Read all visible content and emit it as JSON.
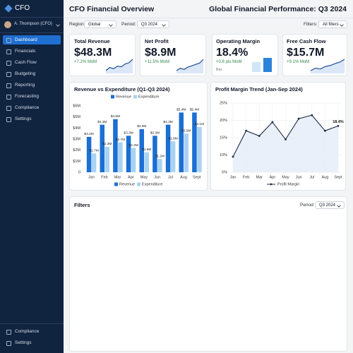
{
  "sidebar": {
    "logo": "CFO",
    "user": "A. Thompson (CFO)",
    "nav": [
      "Dashboard",
      "Financials",
      "Cash Flow",
      "Budgeting",
      "Reporting",
      "Forecasting",
      "Compliance",
      "Settings"
    ],
    "footer": [
      "Compliance",
      "Settings"
    ]
  },
  "header": {
    "title": "CFO Financial Overview",
    "subtitle": "Global Financial Performance: Q3 2024"
  },
  "filters_bar": {
    "region_label": "Region:",
    "region": "Global",
    "period_label": "Period:",
    "period": "Q3 2024",
    "filters_label": "Filters:",
    "filters": "All filters"
  },
  "kpis": [
    {
      "title": "Total Revenue",
      "value": "$48.3M",
      "change": "+7.2% MoM",
      "trend": [
        2,
        3,
        2.6,
        3.4,
        3.2,
        4.1,
        4.5,
        5.6
      ]
    },
    {
      "title": "Net Profit",
      "value": "$8.9M",
      "change": "+11.5% MoM",
      "trend": [
        1.8,
        2.6,
        2.2,
        3,
        3.4,
        3.9,
        4.3,
        5.6
      ]
    },
    {
      "title": "Operating Margin",
      "value": "18.4%",
      "change": "+0.8 pts MoM",
      "chart_label": "Bar",
      "bars": [
        13,
        18.4
      ]
    },
    {
      "title": "Free Cash Flow",
      "value": "$15.7M",
      "change": "+9.1% MoM",
      "trend": [
        2,
        2.8,
        2.5,
        3.3,
        3.6,
        4.2,
        4.7,
        5.6
      ]
    }
  ],
  "chart_data": [
    {
      "type": "bar",
      "title": "Revenue vs Expenditure (Q1-Q3 2024)",
      "categories": [
        "Jan",
        "Feb",
        "Mar",
        "Apr",
        "May",
        "Jun",
        "Jul",
        "Aug",
        "Sept"
      ],
      "series": [
        {
          "name": "Revenue",
          "color": "#1c6fd3",
          "values": [
            3.2,
            4.3,
            4.8,
            3.3,
            3.9,
            3.3,
            4.3,
            5.4,
            5.4
          ],
          "value_labels": [
            "$3.2M",
            "$4.3M",
            "$4.8M",
            "$3.3M",
            "$3.9M",
            "$3.3M",
            "$4.3M",
            "$5.4M",
            "$5.4M"
          ]
        },
        {
          "name": "Expenditure",
          "color": "#a9d3f3",
          "values": [
            1.7,
            2.3,
            2.7,
            2.2,
            1.8,
            1.2,
            2.8,
            3.5,
            4.1
          ],
          "value_labels": [
            "$1.7M",
            "$2.3M",
            "$2.7M",
            "$2.2M",
            "$1.8M",
            "$1.2M",
            "$2.8M",
            "$3.5M",
            "$4.1M"
          ]
        }
      ],
      "ylim": [
        0,
        6
      ],
      "yticks": [
        0,
        {
          "value": 1,
          "label": "$1M"
        },
        {
          "value": 2,
          "label": "$2M"
        },
        {
          "value": 3,
          "label": "$3M"
        },
        {
          "value": 4,
          "label": "$4M"
        },
        {
          "value": 5,
          "label": "$5M"
        },
        {
          "value": 6,
          "label": "$6M"
        }
      ],
      "grid": false
    },
    {
      "type": "line",
      "title": "Profit Margin Trend (Jan-Sep 2024)",
      "categories": [
        "Jan",
        "Feb",
        "Mar",
        "Apr",
        "May",
        "Jun",
        "Jul",
        "Aug",
        "Sept"
      ],
      "series": [
        {
          "name": "Profit Margin",
          "color": "#1d2b45",
          "values": [
            9.5,
            17,
            15.5,
            19.5,
            14.5,
            20.5,
            21.5,
            17,
            18.4
          ],
          "value_labels": [
            null,
            null,
            null,
            null,
            null,
            null,
            null,
            null,
            "18.4%"
          ]
        }
      ],
      "ylim": [
        5,
        25
      ],
      "yticks": [
        {
          "value": 5,
          "label": "5%"
        },
        {
          "value": 10,
          "label": "10%"
        },
        {
          "value": 15,
          "label": "15%"
        },
        {
          "value": 20,
          "label": "20%"
        },
        {
          "value": 25,
          "label": "25%"
        }
      ],
      "grid": true
    }
  ],
  "filters_panel": {
    "title": "Filters",
    "period_label": "Period:",
    "period": "Q3 2024"
  }
}
